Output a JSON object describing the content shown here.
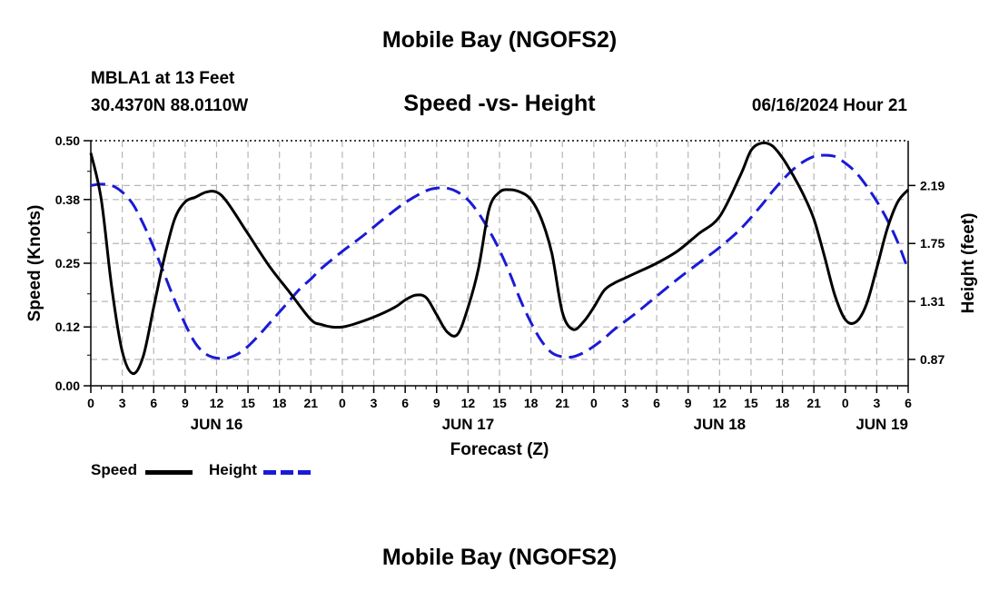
{
  "page": {
    "title": "Mobile Bay (NGOFS2)",
    "station": "MBLA1 at 13 Feet",
    "coords": "30.4370N  88.0110W",
    "timestamp": "06/16/2024 Hour 21"
  },
  "chart_data": {
    "type": "line",
    "title": "Speed -vs- Height",
    "xlabel": "Forecast (Z)",
    "ylabel": "Speed (Knots)",
    "y2label": "Height (feet)",
    "xlim": [
      0,
      78
    ],
    "ylim": [
      0,
      0.5
    ],
    "y2lim": [
      0.67,
      2.53
    ],
    "x_tick_labels": [
      "0",
      "3",
      "6",
      "9",
      "12",
      "15",
      "18",
      "21",
      "0",
      "3",
      "6",
      "9",
      "12",
      "15",
      "18",
      "21",
      "0",
      "3",
      "6",
      "9",
      "12",
      "15",
      "18",
      "21",
      "0",
      "3",
      "6"
    ],
    "day_labels": [
      {
        "label": "JUN 16",
        "x": 12
      },
      {
        "label": "JUN 17",
        "x": 36
      },
      {
        "label": "JUN 18",
        "x": 60
      },
      {
        "label": "JUN 19",
        "x": 75.5
      }
    ],
    "y_ticks": [
      0.0,
      0.12,
      0.25,
      0.38,
      0.5
    ],
    "y_tick_labels": [
      "0.00",
      "0.12",
      "0.25",
      "0.38",
      "0.50"
    ],
    "y2_ticks": [
      0.87,
      1.31,
      1.75,
      2.19
    ],
    "y2_tick_labels": [
      "0.87",
      "1.31",
      "1.75",
      "2.19"
    ],
    "grid": true,
    "legend_position": "bottom-left",
    "series": [
      {
        "name": "Speed",
        "color": "#000000",
        "axis": "left",
        "x": [
          0,
          1,
          2,
          3,
          4,
          5,
          6,
          7,
          8,
          9,
          10,
          11,
          12,
          13,
          15,
          17,
          19,
          21,
          22,
          23,
          24,
          25,
          27,
          29,
          30,
          31,
          32,
          33,
          34,
          35,
          36,
          37,
          38,
          39,
          40,
          41,
          42,
          43,
          44,
          45,
          46,
          47,
          48,
          49,
          50,
          51,
          52,
          54,
          56,
          58,
          60,
          62,
          63,
          64,
          65,
          66,
          67,
          68,
          69,
          70,
          71,
          72,
          73,
          74,
          75,
          76,
          77,
          78
        ],
        "values": [
          0.475,
          0.38,
          0.2,
          0.07,
          0.025,
          0.06,
          0.16,
          0.26,
          0.34,
          0.375,
          0.385,
          0.395,
          0.395,
          0.375,
          0.31,
          0.245,
          0.19,
          0.135,
          0.125,
          0.12,
          0.12,
          0.125,
          0.14,
          0.16,
          0.175,
          0.185,
          0.18,
          0.145,
          0.11,
          0.105,
          0.16,
          0.24,
          0.36,
          0.395,
          0.4,
          0.395,
          0.38,
          0.34,
          0.27,
          0.15,
          0.115,
          0.13,
          0.16,
          0.195,
          0.21,
          0.22,
          0.23,
          0.25,
          0.275,
          0.31,
          0.345,
          0.43,
          0.48,
          0.495,
          0.49,
          0.465,
          0.43,
          0.39,
          0.34,
          0.265,
          0.185,
          0.135,
          0.13,
          0.165,
          0.24,
          0.32,
          0.375,
          0.4
        ]
      },
      {
        "name": "Height",
        "color": "#1a1ad6",
        "axis": "right",
        "x": [
          0,
          1,
          2,
          3,
          4,
          5,
          6,
          7,
          8,
          9,
          10,
          11,
          12,
          13,
          14,
          15,
          16,
          17,
          18,
          19,
          20,
          21,
          22,
          24,
          26,
          28,
          30,
          32,
          33,
          34,
          35,
          36,
          37,
          38,
          39,
          40,
          41,
          42,
          43,
          44,
          45,
          46,
          47,
          48,
          49,
          50,
          52,
          54,
          56,
          58,
          60,
          62,
          64,
          65,
          66,
          67,
          68,
          69,
          70,
          71,
          72,
          73,
          74,
          75,
          76,
          77,
          78
        ],
        "values": [
          2.19,
          2.2,
          2.19,
          2.14,
          2.05,
          1.9,
          1.72,
          1.52,
          1.32,
          1.14,
          0.99,
          0.91,
          0.88,
          0.88,
          0.91,
          0.97,
          1.05,
          1.14,
          1.23,
          1.32,
          1.41,
          1.48,
          1.56,
          1.69,
          1.81,
          1.94,
          2.06,
          2.15,
          2.17,
          2.17,
          2.14,
          2.08,
          1.98,
          1.85,
          1.7,
          1.52,
          1.32,
          1.15,
          1.01,
          0.92,
          0.89,
          0.89,
          0.92,
          0.97,
          1.03,
          1.1,
          1.22,
          1.35,
          1.48,
          1.6,
          1.72,
          1.86,
          2.04,
          2.14,
          2.23,
          2.31,
          2.37,
          2.41,
          2.42,
          2.41,
          2.36,
          2.29,
          2.19,
          2.07,
          1.93,
          1.76,
          1.55
        ]
      }
    ]
  }
}
